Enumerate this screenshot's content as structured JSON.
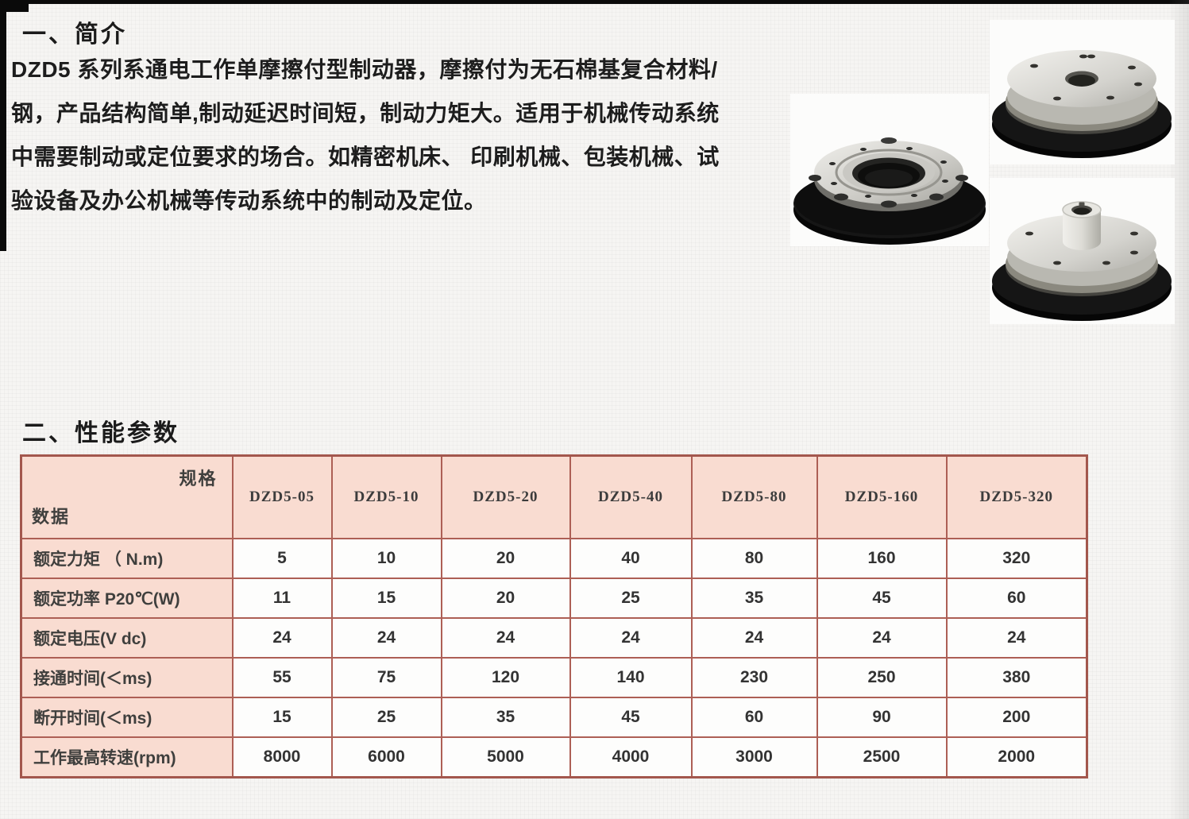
{
  "section1": {
    "heading": "一、简介",
    "lines": [
      "DZD5 系列系通电工作单摩擦付型制动器，摩擦付为无石棉基复合材料/",
      "钢，产品结构简单,制动延迟时间短，制动力矩大。适用于机械传动系统",
      "中需要制动或定位要求的场合。如精密机床、 印刷机械、包装机械、试",
      "验设备及办公机械等传动系统中的制动及定位。"
    ]
  },
  "section2": {
    "heading": "二、性能参数"
  },
  "table": {
    "corner_top": "规格",
    "corner_bottom": "数据",
    "columns": [
      "DZD5-05",
      "DZD5-10",
      "DZD5-20",
      "DZD5-40",
      "DZD5-80",
      "DZD5-160",
      "DZD5-320"
    ],
    "rows": [
      {
        "label": "额定力矩 （ N.m)",
        "values": [
          "5",
          "10",
          "20",
          "40",
          "80",
          "160",
          "320"
        ]
      },
      {
        "label": "额定功率 P20℃(W)",
        "values": [
          "11",
          "15",
          "20",
          "25",
          "35",
          "45",
          "60"
        ]
      },
      {
        "label": "额定电压(V dc)",
        "values": [
          "24",
          "24",
          "24",
          "24",
          "24",
          "24",
          "24"
        ]
      },
      {
        "label": "接通时间(＜ms)",
        "values": [
          "55",
          "75",
          "120",
          "140",
          "230",
          "250",
          "380"
        ]
      },
      {
        "label": "断开时间(＜ms)",
        "values": [
          "15",
          "25",
          "35",
          "45",
          "60",
          "90",
          "200"
        ]
      },
      {
        "label": "工作最高转速(rpm)",
        "values": [
          "8000",
          "6000",
          "5000",
          "4000",
          "3000",
          "2500",
          "2000"
        ]
      }
    ]
  },
  "colors": {
    "table_border": "#ad5f55",
    "cell_fill": "#f9dcd1",
    "page_background": "#f6f5f3"
  }
}
